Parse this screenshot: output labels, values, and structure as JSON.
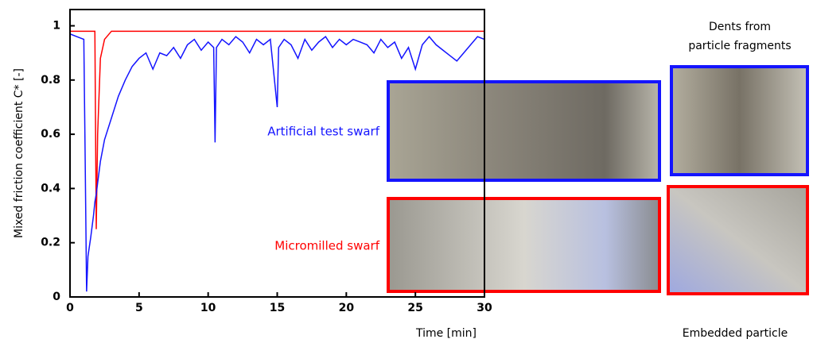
{
  "chart_data": {
    "type": "line",
    "x_label": "Time [min]",
    "y_label": "Mixed friction coefficient C* [-]",
    "x": [
      0,
      0.5,
      1.0,
      1.1,
      1.2,
      1.3,
      1.5,
      1.7,
      1.8,
      1.9,
      2.0,
      2.2,
      2.5,
      3,
      3.5,
      4,
      4.5,
      5,
      5.5,
      6,
      6.5,
      7,
      7.5,
      8,
      8.5,
      9,
      9.5,
      10,
      10.4,
      10.5,
      10.6,
      11,
      11.5,
      12,
      12.5,
      13,
      13.5,
      14,
      14.5,
      15,
      15.1,
      15.5,
      16,
      16.5,
      17,
      17.5,
      18,
      18.5,
      19,
      19.5,
      20,
      20.5,
      21,
      21.5,
      22,
      22.5,
      23,
      23.5,
      24,
      24.5,
      25,
      25.5,
      26,
      26.5,
      27,
      27.5,
      28,
      28.5,
      29,
      29.5,
      30
    ],
    "series": [
      {
        "name": "Artificial test swarf",
        "color": "#1414ff",
        "values": [
          0.97,
          0.96,
          0.95,
          0.5,
          0.02,
          0.15,
          0.22,
          0.3,
          0.35,
          0.38,
          0.42,
          0.5,
          0.58,
          0.66,
          0.74,
          0.8,
          0.85,
          0.88,
          0.9,
          0.84,
          0.9,
          0.89,
          0.92,
          0.88,
          0.93,
          0.95,
          0.91,
          0.94,
          0.92,
          0.57,
          0.92,
          0.95,
          0.93,
          0.96,
          0.94,
          0.9,
          0.95,
          0.93,
          0.95,
          0.7,
          0.92,
          0.95,
          0.93,
          0.88,
          0.95,
          0.91,
          0.94,
          0.96,
          0.92,
          0.95,
          0.93,
          0.95,
          0.94,
          0.93,
          0.9,
          0.95,
          0.92,
          0.94,
          0.88,
          0.92,
          0.84,
          0.93,
          0.96,
          0.93,
          0.91,
          0.89,
          0.87,
          0.9,
          0.93,
          0.96,
          0.95
        ]
      },
      {
        "name": "Micromilled swarf",
        "color": "#ff0000",
        "values": [
          0.98,
          0.98,
          0.98,
          0.98,
          0.98,
          0.98,
          0.98,
          0.98,
          0.98,
          0.25,
          0.6,
          0.88,
          0.95,
          0.98,
          0.98,
          0.98,
          0.98,
          0.98,
          0.98,
          0.98,
          0.98,
          0.98,
          0.98,
          0.98,
          0.98,
          0.98,
          0.98,
          0.98,
          0.98,
          0.98,
          0.98,
          0.98,
          0.98,
          0.98,
          0.98,
          0.98,
          0.98,
          0.98,
          0.98,
          0.98,
          0.98,
          0.98,
          0.98,
          0.98,
          0.98,
          0.98,
          0.98,
          0.98,
          0.98,
          0.98,
          0.98,
          0.98,
          0.98,
          0.98,
          0.98,
          0.98,
          0.98,
          0.98,
          0.98,
          0.98,
          0.98,
          0.98,
          0.98,
          0.98,
          0.98,
          0.98,
          0.98,
          0.98,
          0.98,
          0.98,
          0.98
        ]
      }
    ],
    "xlim": [
      0,
      30
    ],
    "xticks": [
      0,
      5,
      10,
      15,
      20,
      25,
      30
    ],
    "ylim": [
      0,
      1.06
    ],
    "yticks": [
      0,
      0.2,
      0.4,
      0.6,
      0.8,
      1
    ],
    "image_captions": [
      "Dents from particle fragments",
      "Embedded particle"
    ]
  }
}
